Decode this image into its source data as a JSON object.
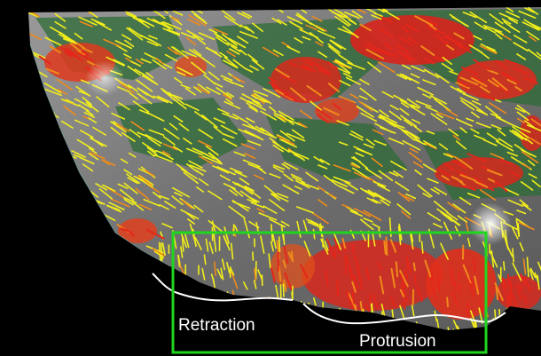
{
  "figure": {
    "labels": {
      "retraction": "Retraction",
      "protrusion": "Protrusion"
    },
    "colors": {
      "background": "#000000",
      "cell_gray": "#8a8a8a",
      "vector_yellow": "#f2ee1a",
      "vector_red": "#e5261b",
      "vector_orange": "#f08a1a",
      "region_green": "#2e7d3a",
      "outline_teal": "#7fb5b0",
      "box_green": "#1fd61f",
      "edge_line_white": "#ffffff"
    },
    "elements": {
      "region_box": "green rectangle highlighting the cell edge",
      "edge_trace": "white trace of the cell edge"
    }
  }
}
